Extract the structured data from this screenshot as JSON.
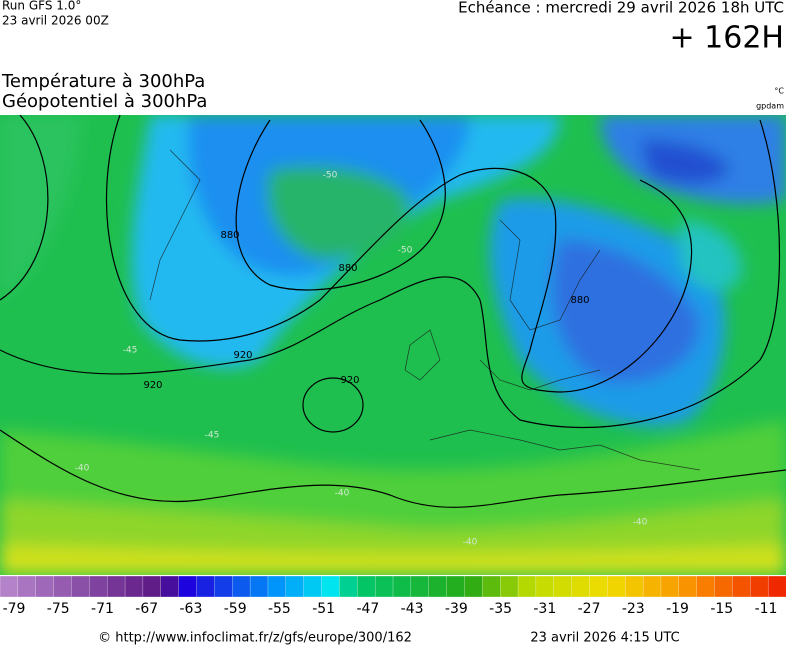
{
  "header": {
    "run": "Run GFS 1.0°",
    "run_date": "23 avril 2026 00Z",
    "valid": "Echéance : mercredi 29 avril 2026 18h UTC",
    "lead": "+ 162H"
  },
  "titles": {
    "field1": "Température à 300hPa",
    "field2": "Géopotentiel à 300hPa",
    "unit1": "°C",
    "unit2": "gpdam"
  },
  "map": {
    "contour_labels": [
      "880",
      "880",
      "880",
      "920",
      "920",
      "920"
    ],
    "temperature_labels": [
      "-50",
      "-50",
      "-45",
      "-45",
      "-40",
      "-40",
      "-40",
      "-40"
    ]
  },
  "legend": {
    "labels": [
      "-79",
      "-75",
      "-71",
      "-67",
      "-63",
      "-59",
      "-55",
      "-51",
      "-47",
      "-43",
      "-39",
      "-35",
      "-31",
      "-27",
      "-23",
      "-19",
      "-15",
      "-11"
    ]
  },
  "footer": {
    "source": "© http://www.infoclimat.fr/z/gfs/europe/300/162",
    "generated": "23 avril 2026  4:15 UTC"
  }
}
